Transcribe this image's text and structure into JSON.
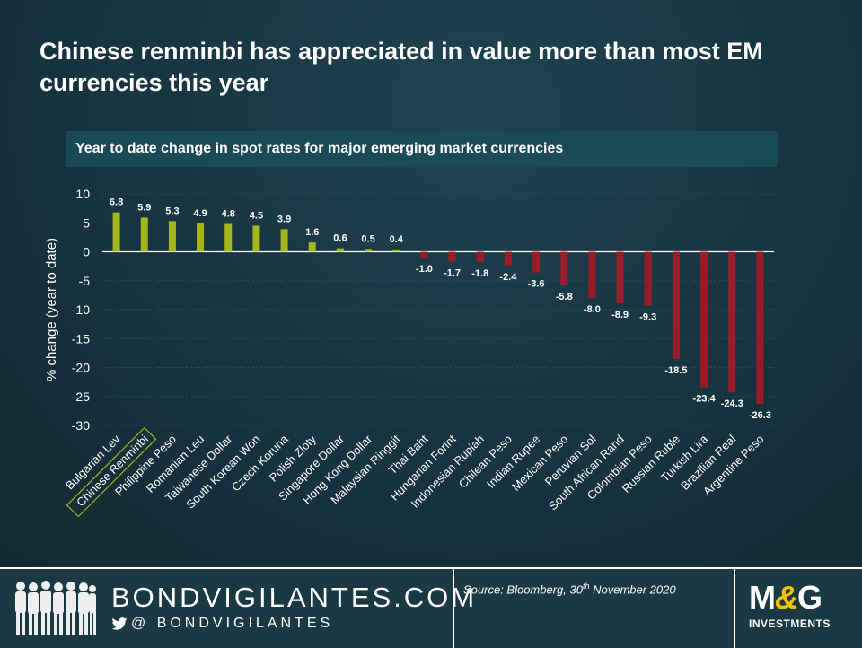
{
  "title": "Chinese renminbi has appreciated in value more than most EM currencies this year",
  "subtitle": "Year to date change in spot rates for major emerging market currencies",
  "chart_data": {
    "type": "bar",
    "ylabel": "% change (year to date)",
    "ylim": [
      -30,
      10
    ],
    "yticks": [
      10,
      5,
      0,
      -5,
      -10,
      -15,
      -20,
      -25,
      -30
    ],
    "grid": true,
    "highlighted_category": "Chinese Renminbi",
    "colors": {
      "positive": "#a4b81e",
      "negative": "#9b1c28",
      "highlight_box": "#a4b81e"
    },
    "categories": [
      "Bulgarian Lev",
      "Chinese Renminbi",
      "Philippine Peso",
      "Romanian Leu",
      "Taiwanese Dollar",
      "South Korean Won",
      "Czech Koruna",
      "Polish Zloty",
      "Singapore Dollar",
      "Hong Kong Dollar",
      "Malaysian Ringgit",
      "Thai Baht",
      "Hungarian Forint",
      "Indonesian Rupiah",
      "Chilean Peso",
      "Indian Rupee",
      "Mexican Peso",
      "Peruvian Sol",
      "South African Rand",
      "Colombian Peso",
      "Russian Ruble",
      "Turkish Lira",
      "Brazilian Real",
      "Argentine Peso"
    ],
    "values": [
      6.8,
      5.9,
      5.3,
      4.9,
      4.8,
      4.5,
      3.9,
      1.6,
      0.6,
      0.5,
      0.4,
      -1.0,
      -1.7,
      -1.8,
      -2.4,
      -3.6,
      -5.8,
      -8.0,
      -8.9,
      -9.3,
      -18.5,
      -23.4,
      -24.3,
      -26.3
    ],
    "labels": [
      "6.8",
      "5.9",
      "5.3",
      "4.9",
      "4.8",
      "4.5",
      "3.9",
      "1.6",
      "0.6",
      "0.5",
      "0.4",
      "-1.0",
      "-1.7",
      "-1.8",
      "-2.4",
      "-3.6",
      "-5.8",
      "-8.0",
      "-8.9",
      "-9.3",
      "-18.5",
      "-23.4",
      "-24.3",
      "-26.3"
    ]
  },
  "footer": {
    "brand": "BONDVIGILANTES.COM",
    "handle": "@ BONDVIGILANTES",
    "source_prefix": "Source: Bloomberg, 30",
    "source_sup": "th",
    "source_suffix": " November 2020",
    "logo_m": "M",
    "logo_amp": "&",
    "logo_g": "G",
    "logo_sub": "INVESTMENTS"
  },
  "icons": [
    "people-silhouette-icon",
    "twitter-bird-icon"
  ]
}
